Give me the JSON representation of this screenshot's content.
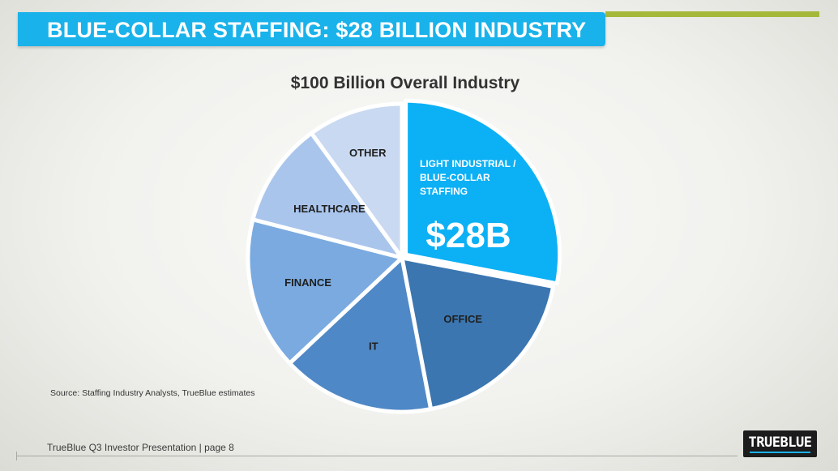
{
  "header": {
    "title": "BLUE-COLLAR STAFFING: $28 BILLION INDUSTRY"
  },
  "chart_data": {
    "type": "pie",
    "title": "$100 Billion Overall Industry",
    "units": "billions USD",
    "slices": [
      {
        "label_lines": [
          "LIGHT INDUSTRIAL /",
          "BLUE-COLLAR",
          "STAFFING"
        ],
        "value": 28,
        "value_label": "$28B",
        "color": "#0cb0f5"
      },
      {
        "label_lines": [
          "OFFICE"
        ],
        "value": 19,
        "color": "#3b76b0"
      },
      {
        "label_lines": [
          "IT"
        ],
        "value": 16,
        "color": "#4f88c6"
      },
      {
        "label_lines": [
          "FINANCE"
        ],
        "value": 16,
        "color": "#7aaae0"
      },
      {
        "label_lines": [
          "HEALTHCARE"
        ],
        "value": 11,
        "color": "#a9c5ec"
      },
      {
        "label_lines": [
          "OTHER"
        ],
        "value": 10,
        "color": "#c8d9f1"
      }
    ]
  },
  "source": "Source: Staffing Industry Analysts, TrueBlue estimates",
  "footer": {
    "text": "TrueBlue Q3 Investor Presentation | page 8",
    "logo_text": "TRUEBLUE"
  }
}
